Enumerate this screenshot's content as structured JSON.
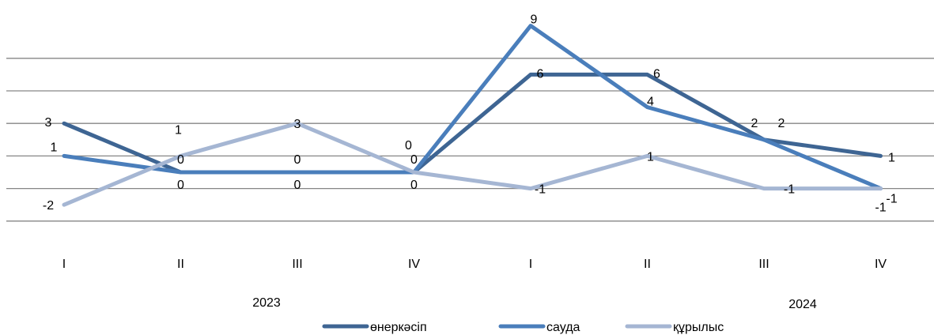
{
  "chart_data": {
    "type": "line",
    "categories": [
      "I",
      "II",
      "III",
      "IV",
      "I",
      "II",
      "III",
      "IV"
    ],
    "year_labels": [
      "2023",
      "2024"
    ],
    "series": [
      {
        "name": "өнеркәсіп",
        "color": "#3e6593",
        "values": [
          3,
          0,
          0,
          0,
          6,
          6,
          2,
          1
        ]
      },
      {
        "name": "сауда",
        "color": "#4a7ebb",
        "values": [
          1,
          0,
          0,
          0,
          9,
          4,
          2,
          -1
        ]
      },
      {
        "name": "құрылыс",
        "color": "#a5b6d3",
        "values": [
          -2,
          1,
          3,
          0,
          -1,
          1,
          -1,
          -1
        ]
      }
    ],
    "data_labels": [
      [
        "3",
        "0",
        "0",
        "0",
        "6",
        "6",
        "2",
        "1"
      ],
      [
        "1",
        "0",
        "0",
        "0",
        "9",
        "4",
        "2",
        "-1"
      ],
      [
        "-2",
        "1",
        "3",
        "0",
        "-1",
        "1",
        "-1",
        "-1"
      ]
    ],
    "ylim": [
      -3,
      7
    ],
    "grid": true,
    "legend": "bottom",
    "title": "",
    "xlabel": "",
    "ylabel": ""
  }
}
